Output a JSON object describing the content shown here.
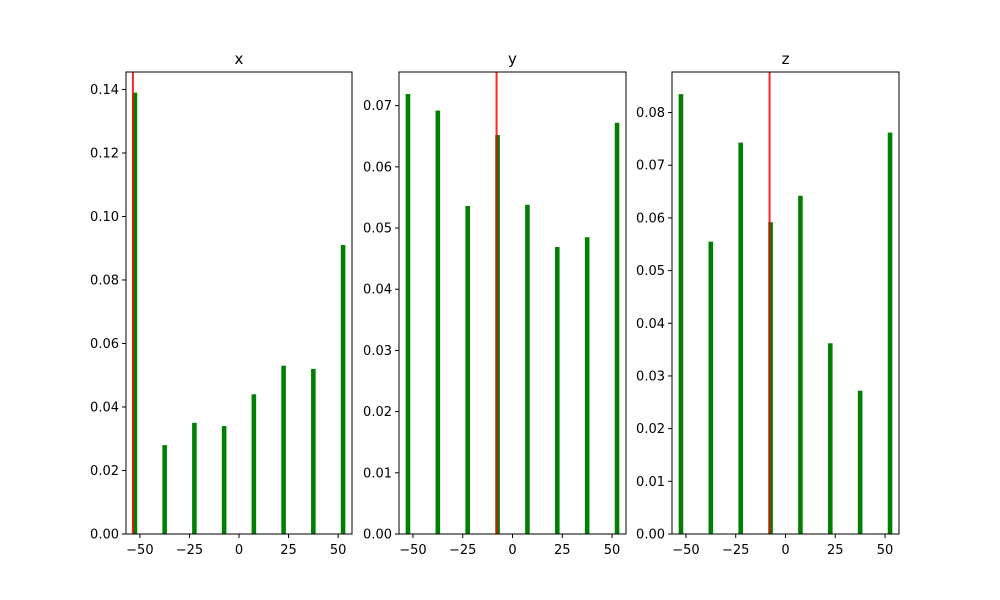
{
  "chart_data": [
    {
      "type": "bar",
      "title": "x",
      "x": [
        -52.5,
        -37.5,
        -22.5,
        -7.5,
        7.5,
        22.5,
        37.5,
        52.5
      ],
      "values": [
        0.139,
        0.028,
        0.035,
        0.034,
        0.044,
        0.053,
        0.052,
        0.091
      ],
      "xlim": [
        -57,
        57
      ],
      "ylim": [
        0,
        0.1455
      ],
      "xticks": [
        -50,
        -25,
        0,
        25,
        50
      ],
      "xtick_labels": [
        "−50",
        "−25",
        "0",
        "25",
        "50"
      ],
      "yticks": [
        0.0,
        0.02,
        0.04,
        0.06,
        0.08,
        0.1,
        0.12,
        0.14
      ],
      "ytick_labels": [
        "0.00",
        "0.02",
        "0.04",
        "0.06",
        "0.08",
        "0.10",
        "0.12",
        "0.14"
      ],
      "marker_x": -53.5,
      "bar_color": "#008000",
      "marker_color": "#ff0000",
      "grid": false
    },
    {
      "type": "bar",
      "title": "y",
      "x": [
        -52.5,
        -37.5,
        -22.5,
        -7.5,
        7.5,
        22.5,
        37.5,
        52.5
      ],
      "values": [
        0.0719,
        0.0692,
        0.0536,
        0.0652,
        0.0538,
        0.0469,
        0.0485,
        0.0672
      ],
      "xlim": [
        -57,
        57
      ],
      "ylim": [
        0,
        0.0755
      ],
      "xticks": [
        -50,
        -25,
        0,
        25,
        50
      ],
      "xtick_labels": [
        "−50",
        "−25",
        "0",
        "25",
        "50"
      ],
      "yticks": [
        0.0,
        0.01,
        0.02,
        0.03,
        0.04,
        0.05,
        0.06,
        0.07
      ],
      "ytick_labels": [
        "0.00",
        "0.01",
        "0.02",
        "0.03",
        "0.04",
        "0.05",
        "0.06",
        "0.07"
      ],
      "marker_x": -8,
      "bar_color": "#008000",
      "marker_color": "#ff0000",
      "grid": false
    },
    {
      "type": "bar",
      "title": "z",
      "x": [
        -52.5,
        -37.5,
        -22.5,
        -7.5,
        7.5,
        22.5,
        37.5,
        52.5
      ],
      "values": [
        0.0835,
        0.0555,
        0.0743,
        0.0592,
        0.0642,
        0.0362,
        0.0272,
        0.0762
      ],
      "xlim": [
        -57,
        57
      ],
      "ylim": [
        0,
        0.0877
      ],
      "xticks": [
        -50,
        -25,
        0,
        25,
        50
      ],
      "xtick_labels": [
        "−50",
        "−25",
        "0",
        "25",
        "50"
      ],
      "yticks": [
        0.0,
        0.01,
        0.02,
        0.03,
        0.04,
        0.05,
        0.06,
        0.07,
        0.08
      ],
      "ytick_labels": [
        "0.00",
        "0.01",
        "0.02",
        "0.03",
        "0.04",
        "0.05",
        "0.06",
        "0.07",
        "0.08"
      ],
      "marker_x": -8,
      "bar_color": "#008000",
      "marker_color": "#ff0000",
      "grid": false
    }
  ]
}
